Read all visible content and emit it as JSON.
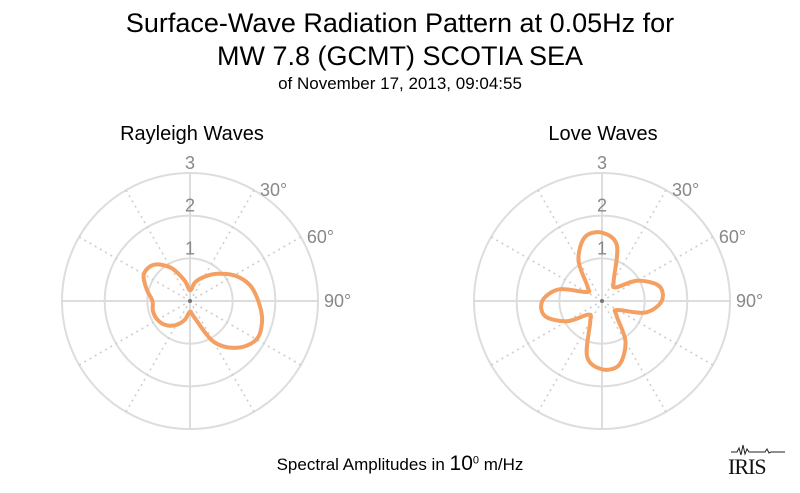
{
  "title": {
    "line1": "Surface-Wave Radiation Pattern at 0.05Hz for",
    "line2": "MW 7.8 (GCMT) SCOTIA SEA",
    "line3": "of November 17, 2013, 09:04:55"
  },
  "footer": {
    "prefix": "Spectral Amplitudes in ",
    "base": "10",
    "exponent": "0",
    "unit": " m/Hz"
  },
  "logo": {
    "text": "IRIS"
  },
  "colors": {
    "pattern": "#f4a063",
    "grid": "#dddddd",
    "grid_dotted": "#cfcfcf",
    "tick_text": "#888888"
  },
  "chart_data": [
    {
      "type": "polar",
      "title": "Rayleigh Waves",
      "radial_ticks": [
        "1",
        "2",
        "3"
      ],
      "radial_range": [
        0,
        3
      ],
      "angle_tick_labels": [
        "30°",
        "60°",
        "90°"
      ],
      "angle_ticks_deg": [
        30,
        60,
        90
      ],
      "series": [
        {
          "azimuth_deg": [
            0,
            15,
            30,
            45,
            60,
            75,
            90,
            105,
            120,
            135,
            150,
            165,
            180,
            195,
            210,
            225,
            240,
            255,
            270,
            285,
            300,
            315,
            330,
            345
          ],
          "amplitude": [
            0.25,
            0.45,
            0.65,
            0.9,
            1.2,
            1.45,
            1.6,
            1.75,
            1.8,
            1.55,
            1.1,
            0.4,
            0.25,
            0.45,
            0.65,
            0.8,
            0.88,
            0.9,
            0.88,
            1.05,
            1.25,
            1.2,
            0.9,
            0.5
          ]
        }
      ]
    },
    {
      "type": "polar",
      "title": "Love Waves",
      "radial_ticks": [
        "1",
        "2",
        "3"
      ],
      "radial_range": [
        0,
        3
      ],
      "angle_tick_labels": [
        "30°",
        "60°",
        "90°"
      ],
      "angle_ticks_deg": [
        30,
        60,
        90
      ],
      "series": [
        {
          "azimuth_deg": [
            0,
            15,
            30,
            45,
            60,
            75,
            90,
            105,
            120,
            135,
            150,
            165,
            180,
            195,
            210,
            225,
            240,
            255,
            270,
            285,
            300,
            315,
            330,
            345
          ],
          "amplitude": [
            1.6,
            1.35,
            0.55,
            0.45,
            0.95,
            1.38,
            1.4,
            1.05,
            0.42,
            0.48,
            1.1,
            1.55,
            1.6,
            1.35,
            0.55,
            0.45,
            0.95,
            1.38,
            1.4,
            1.05,
            0.42,
            0.48,
            1.1,
            1.55
          ]
        }
      ]
    }
  ]
}
